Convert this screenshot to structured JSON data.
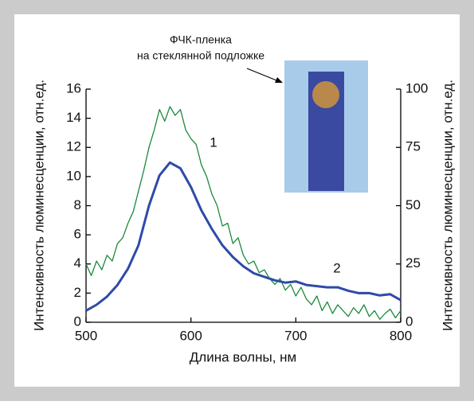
{
  "chart_data": {
    "type": "line",
    "x_label": "Длина волны, нм",
    "y_label": "Интенсивность люминесценции, отн.ед.",
    "y2_label": "Интенсивность люминесценции, отн.ед.",
    "inset_label": [
      "ФЧК-пленка",
      "на стеклянной подложке"
    ],
    "xlim": [
      500,
      800
    ],
    "xticks": [
      500,
      600,
      700,
      800
    ],
    "ylim": [
      0,
      16
    ],
    "yticks": [
      0,
      2,
      4,
      6,
      8,
      10,
      12,
      14,
      16
    ],
    "y2lim": [
      0,
      100
    ],
    "y2ticks": [
      0,
      25,
      50,
      75,
      100
    ],
    "series": [
      {
        "name": "1",
        "color": "#1a8a3a",
        "x": [
          500,
          505,
          510,
          515,
          520,
          525,
          530,
          535,
          540,
          545,
          550,
          555,
          560,
          565,
          570,
          575,
          580,
          585,
          590,
          595,
          600,
          605,
          610,
          615,
          620,
          625,
          630,
          635,
          640,
          645,
          650,
          655,
          660,
          665,
          670,
          675,
          680,
          685,
          690,
          695,
          700,
          705,
          710,
          715,
          720,
          725,
          730,
          735,
          740,
          745,
          750,
          755,
          760,
          765,
          770,
          775,
          780,
          785,
          790,
          795,
          800
        ],
        "values": [
          4.0,
          3.2,
          4.2,
          3.6,
          4.6,
          4.2,
          5.4,
          5.8,
          6.8,
          7.6,
          9.0,
          10.4,
          12.0,
          13.2,
          14.6,
          13.8,
          14.8,
          14.2,
          14.6,
          13.2,
          12.6,
          12.2,
          10.8,
          10.0,
          8.8,
          8.0,
          6.6,
          6.8,
          5.4,
          5.8,
          4.6,
          4.0,
          4.2,
          3.4,
          3.6,
          3.0,
          2.6,
          3.0,
          2.2,
          2.6,
          1.8,
          2.4,
          1.6,
          1.2,
          1.8,
          0.8,
          1.4,
          0.6,
          1.2,
          0.8,
          0.4,
          1.0,
          0.6,
          1.2,
          0.4,
          0.8,
          0.2,
          0.6,
          0.9,
          0.3,
          0.8
        ]
      },
      {
        "name": "2",
        "color": "#2e4aa8",
        "axis": "y2",
        "x": [
          500,
          510,
          520,
          530,
          540,
          550,
          560,
          570,
          580,
          590,
          600,
          610,
          620,
          630,
          640,
          650,
          660,
          670,
          680,
          690,
          700,
          710,
          720,
          730,
          740,
          750,
          760,
          770,
          780,
          790,
          800
        ],
        "values": [
          5,
          7.5,
          11,
          16,
          23,
          33,
          50,
          63,
          68.5,
          66,
          58,
          48,
          40,
          33,
          28,
          24,
          21,
          19.5,
          18,
          17,
          17.5,
          16,
          15.5,
          15,
          15,
          13.5,
          12.5,
          12.5,
          11.5,
          12,
          9.5
        ]
      }
    ]
  }
}
